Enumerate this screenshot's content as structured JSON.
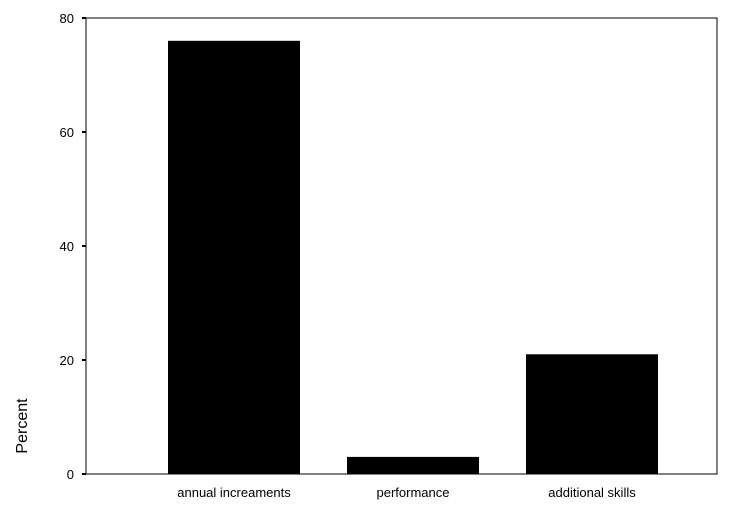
{
  "chart_data": {
    "type": "bar",
    "title": "",
    "xlabel": "",
    "ylabel": "Percent",
    "categories": [
      "annual increaments",
      "performance",
      "additional skills"
    ],
    "values": [
      76,
      3,
      21
    ],
    "ylim": [
      0,
      80
    ],
    "yticks": [
      0,
      20,
      40,
      60,
      80
    ],
    "grid": false,
    "bar_color": "#000000",
    "axis_color": "#000000",
    "background": "#ffffff"
  }
}
